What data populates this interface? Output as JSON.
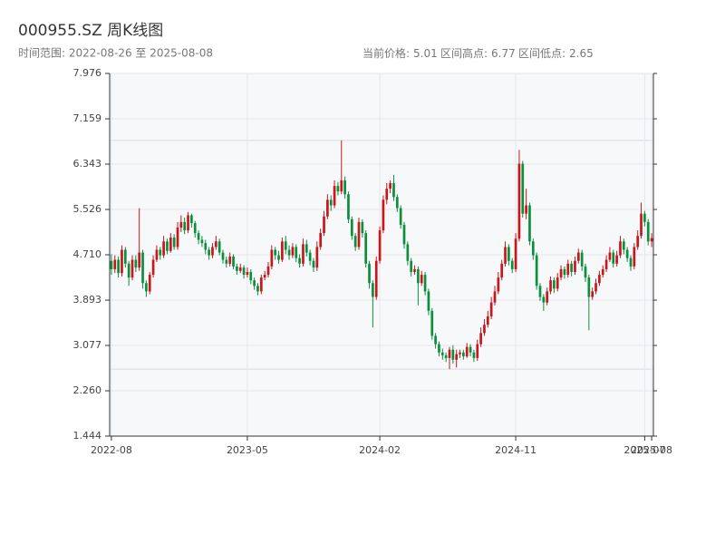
{
  "chart_data": {
    "type": "candlestick",
    "title": "000955.SZ 周K线图",
    "subtitle": "时间范围: 2022-08-26 至 2025-08-08",
    "stats": [
      {
        "label": "当前价格:",
        "value": 5.01
      },
      {
        "label": "区间高点:",
        "value": 6.77
      },
      {
        "label": "区间低点:",
        "value": 2.65
      }
    ],
    "up_color": "#c8161d",
    "down_color": "#0a8f3c",
    "ylim": [
      1.444,
      7.976
    ],
    "yticks": [
      1.444,
      {
        "value": 2.26,
        "label": "2.260"
      },
      3.077,
      3.893,
      {
        "value": 4.71,
        "label": "4.710"
      },
      5.526,
      6.343,
      7.159,
      7.976
    ],
    "grid": true,
    "categories": [
      "2022-08",
      null,
      null,
      null,
      null,
      null,
      null,
      null,
      null,
      null,
      null,
      null,
      null,
      null,
      null,
      null,
      null,
      null,
      null,
      null,
      null,
      null,
      null,
      null,
      null,
      null,
      null,
      null,
      null,
      null,
      null,
      null,
      null,
      null,
      null,
      null,
      null,
      null,
      null,
      "2023-05",
      null,
      null,
      null,
      null,
      null,
      null,
      null,
      null,
      null,
      null,
      null,
      null,
      null,
      null,
      null,
      null,
      null,
      null,
      null,
      null,
      null,
      null,
      null,
      null,
      null,
      null,
      null,
      null,
      null,
      null,
      null,
      null,
      null,
      null,
      null,
      null,
      null,
      "2024-02",
      null,
      null,
      null,
      null,
      null,
      null,
      null,
      null,
      null,
      null,
      null,
      null,
      null,
      null,
      null,
      null,
      null,
      null,
      null,
      null,
      null,
      null,
      null,
      null,
      null,
      null,
      null,
      null,
      null,
      null,
      null,
      null,
      null,
      null,
      null,
      null,
      null,
      null,
      "2024-11",
      null,
      null,
      null,
      null,
      null,
      null,
      null,
      null,
      null,
      null,
      null,
      null,
      null,
      null,
      null,
      null,
      null,
      null,
      null,
      null,
      null,
      null,
      null,
      null,
      null,
      null,
      null,
      null,
      null,
      null,
      null,
      null,
      null,
      null,
      null,
      null,
      "2025-07",
      null,
      "2025-08"
    ],
    "open": [
      4.6,
      4.45,
      4.62,
      4.38,
      4.8,
      4.55,
      4.3,
      4.62,
      4.48,
      4.75,
      4.2,
      4.05,
      4.35,
      4.62,
      4.8,
      4.7,
      4.95,
      4.78,
      5.02,
      4.85,
      5.2,
      5.3,
      5.15,
      5.42,
      5.28,
      5.1,
      4.98,
      4.92,
      4.8,
      4.7,
      4.85,
      4.95,
      4.75,
      4.62,
      4.55,
      4.68,
      4.5,
      4.42,
      4.48,
      4.35,
      4.4,
      4.25,
      4.15,
      4.05,
      4.3,
      4.35,
      4.5,
      4.8,
      4.7,
      4.62,
      4.95,
      4.8,
      4.7,
      4.85,
      4.65,
      4.55,
      4.9,
      4.75,
      4.6,
      4.48,
      4.85,
      5.1,
      5.4,
      5.7,
      5.6,
      5.95,
      5.85,
      6.05,
      5.8,
      5.35,
      5.05,
      4.85,
      5.3,
      5.1,
      4.55,
      4.2,
      3.95,
      4.6,
      5.15,
      5.7,
      5.9,
      6.0,
      5.75,
      5.55,
      5.25,
      4.9,
      4.6,
      4.4,
      4.45,
      4.2,
      4.35,
      4.05,
      3.7,
      3.25,
      3.1,
      2.95,
      2.9,
      2.85,
      3.0,
      2.82,
      2.92,
      2.95,
      2.88,
      3.05,
      2.95,
      2.85,
      3.1,
      3.3,
      3.45,
      3.6,
      3.85,
      4.05,
      4.3,
      4.55,
      4.85,
      4.6,
      4.45,
      5.0,
      6.35,
      5.45,
      5.6,
      4.95,
      4.7,
      4.15,
      3.95,
      3.85,
      4.05,
      4.25,
      4.1,
      4.3,
      4.45,
      4.35,
      4.55,
      4.4,
      4.6,
      4.75,
      4.5,
      4.3,
      3.95,
      4.05,
      4.2,
      4.35,
      4.45,
      4.62,
      4.75,
      4.55,
      4.7,
      4.95,
      4.8,
      4.65,
      4.5,
      4.85,
      5.05,
      5.45,
      5.3,
      4.95
    ],
    "high": [
      4.72,
      4.7,
      4.68,
      4.88,
      4.85,
      4.6,
      4.7,
      4.7,
      5.55,
      4.8,
      4.25,
      4.4,
      4.7,
      4.88,
      4.85,
      5.05,
      5.0,
      5.1,
      5.08,
      5.3,
      5.42,
      5.38,
      5.48,
      5.45,
      5.32,
      5.15,
      5.05,
      4.98,
      4.85,
      4.92,
      5.05,
      5.0,
      4.8,
      4.68,
      4.75,
      4.72,
      4.55,
      4.55,
      4.52,
      4.48,
      4.45,
      4.3,
      4.2,
      4.35,
      4.42,
      4.58,
      4.88,
      4.85,
      4.78,
      5.02,
      5.05,
      4.88,
      4.92,
      4.9,
      4.72,
      5.0,
      4.98,
      4.8,
      4.65,
      4.95,
      5.18,
      5.5,
      5.8,
      5.78,
      6.05,
      6.02,
      6.77,
      6.12,
      5.85,
      5.4,
      5.1,
      5.38,
      5.35,
      5.15,
      4.6,
      4.25,
      4.68,
      5.22,
      5.78,
      6.0,
      6.05,
      6.15,
      5.8,
      5.6,
      5.3,
      4.95,
      4.65,
      4.52,
      4.5,
      4.42,
      4.4,
      4.1,
      3.75,
      3.3,
      3.15,
      3.02,
      2.95,
      3.05,
      3.08,
      3.0,
      3.0,
      3.0,
      3.12,
      3.1,
      3.0,
      3.18,
      3.4,
      3.55,
      3.7,
      3.95,
      4.15,
      4.4,
      4.62,
      4.95,
      4.9,
      4.65,
      5.1,
      6.6,
      6.4,
      5.9,
      5.65,
      5.0,
      4.75,
      4.2,
      4.0,
      4.12,
      4.32,
      4.3,
      4.38,
      4.52,
      4.5,
      4.62,
      4.6,
      4.68,
      4.82,
      4.8,
      4.55,
      4.35,
      4.12,
      4.28,
      4.42,
      4.52,
      4.7,
      4.85,
      4.8,
      4.78,
      5.05,
      5.0,
      4.85,
      4.7,
      4.92,
      5.15,
      5.65,
      5.5,
      5.35,
      5.1
    ],
    "low": [
      4.35,
      4.38,
      4.3,
      4.32,
      4.48,
      4.15,
      4.25,
      4.4,
      4.42,
      4.1,
      3.95,
      4.0,
      4.3,
      4.58,
      4.62,
      4.65,
      4.72,
      4.75,
      4.8,
      4.8,
      5.12,
      5.08,
      5.1,
      5.2,
      5.02,
      4.9,
      4.85,
      4.72,
      4.62,
      4.65,
      4.8,
      4.7,
      4.55,
      4.48,
      4.5,
      4.45,
      4.35,
      4.38,
      4.28,
      4.3,
      4.18,
      4.08,
      3.98,
      4.0,
      4.25,
      4.3,
      4.45,
      4.62,
      4.55,
      4.58,
      4.72,
      4.62,
      4.65,
      4.58,
      4.48,
      4.5,
      4.68,
      4.52,
      4.4,
      4.42,
      4.8,
      5.05,
      5.35,
      5.5,
      5.55,
      5.78,
      5.8,
      5.72,
      5.28,
      4.98,
      4.78,
      4.8,
      5.02,
      4.48,
      4.1,
      3.4,
      3.9,
      4.55,
      5.1,
      5.62,
      5.82,
      5.68,
      5.48,
      5.18,
      4.82,
      4.52,
      4.32,
      4.35,
      3.8,
      4.15,
      3.98,
      3.62,
      3.18,
      3.02,
      2.88,
      2.82,
      2.78,
      2.65,
      2.75,
      2.68,
      2.85,
      2.82,
      2.85,
      2.88,
      2.78,
      2.8,
      3.05,
      3.25,
      3.4,
      3.55,
      3.8,
      4.0,
      4.25,
      4.5,
      4.52,
      4.38,
      4.4,
      4.95,
      5.38,
      5.35,
      4.88,
      4.62,
      4.08,
      3.88,
      3.7,
      3.8,
      4.0,
      4.02,
      4.05,
      4.25,
      4.28,
      4.3,
      4.32,
      4.35,
      4.55,
      4.42,
      4.22,
      3.35,
      3.9,
      4.0,
      4.15,
      4.3,
      4.4,
      4.58,
      4.48,
      4.5,
      4.65,
      4.72,
      4.58,
      4.42,
      4.45,
      4.8,
      5.0,
      5.22,
      4.88,
      4.85
    ],
    "close": [
      4.45,
      4.62,
      4.38,
      4.8,
      4.55,
      4.3,
      4.62,
      4.48,
      4.75,
      4.2,
      4.05,
      4.35,
      4.62,
      4.8,
      4.7,
      4.95,
      4.78,
      5.02,
      4.85,
      5.2,
      5.3,
      5.15,
      5.42,
      5.28,
      5.1,
      4.98,
      4.92,
      4.8,
      4.7,
      4.85,
      4.95,
      4.75,
      4.62,
      4.55,
      4.68,
      4.5,
      4.42,
      4.48,
      4.35,
      4.4,
      4.25,
      4.15,
      4.05,
      4.3,
      4.35,
      4.5,
      4.8,
      4.7,
      4.62,
      4.95,
      4.8,
      4.7,
      4.85,
      4.65,
      4.55,
      4.9,
      4.75,
      4.6,
      4.48,
      4.85,
      5.1,
      5.4,
      5.7,
      5.6,
      5.95,
      5.85,
      6.05,
      5.8,
      5.35,
      5.05,
      4.85,
      5.3,
      5.1,
      4.55,
      4.2,
      3.95,
      4.6,
      5.15,
      5.7,
      5.9,
      6.0,
      5.75,
      5.55,
      5.25,
      4.9,
      4.6,
      4.4,
      4.45,
      4.2,
      4.35,
      4.05,
      3.7,
      3.25,
      3.1,
      2.95,
      2.9,
      2.85,
      3.0,
      2.82,
      2.92,
      2.95,
      2.88,
      3.05,
      2.95,
      2.85,
      3.1,
      3.3,
      3.45,
      3.6,
      3.85,
      4.05,
      4.3,
      4.55,
      4.85,
      4.6,
      4.45,
      5.0,
      6.35,
      5.45,
      5.6,
      4.95,
      4.7,
      4.15,
      3.95,
      3.85,
      4.05,
      4.25,
      4.1,
      4.3,
      4.45,
      4.35,
      4.55,
      4.4,
      4.6,
      4.75,
      4.5,
      4.3,
      3.95,
      4.05,
      4.2,
      4.35,
      4.45,
      4.62,
      4.75,
      4.55,
      4.7,
      4.95,
      4.8,
      4.65,
      4.5,
      4.85,
      5.05,
      5.45,
      5.3,
      4.95,
      5.01
    ]
  }
}
